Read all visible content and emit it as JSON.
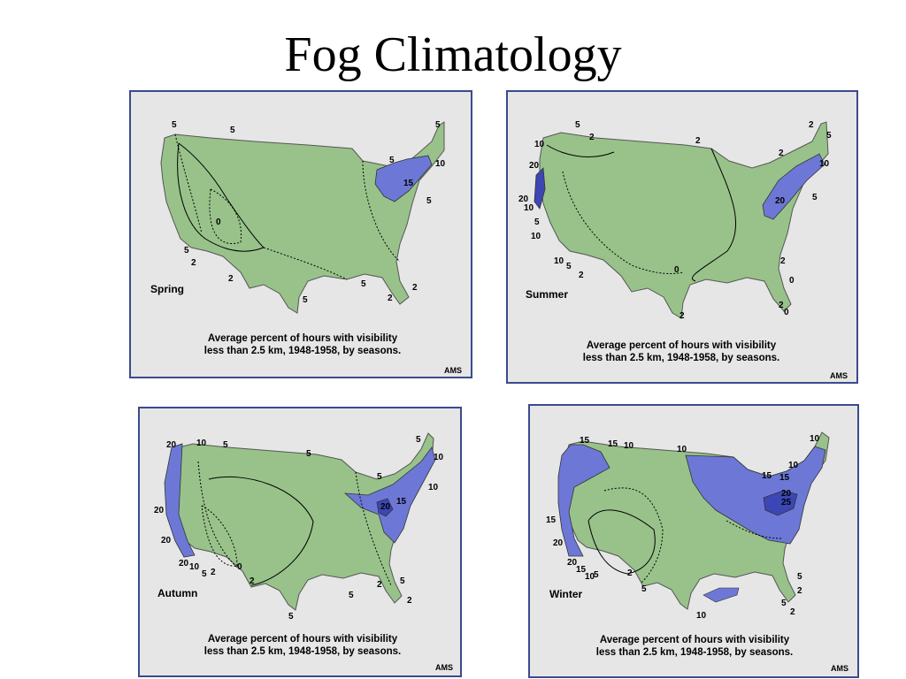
{
  "title": "Fog Climatology",
  "caption": {
    "line1": "Average percent of hours with visibility",
    "line2": "less than 2.5 km, 1948-1958, by seasons."
  },
  "credit": "AMS",
  "colors": {
    "land": "#98c28a",
    "fog_light": "#6d78d6",
    "fog_dark": "#3c46b4",
    "panel_bg": "#e6e6e6",
    "border": "#3b4a8e"
  },
  "panels": [
    {
      "season": "Spring",
      "contour_labels": [
        "5",
        "5",
        "5",
        "5",
        "10",
        "15",
        "5",
        "0",
        "5",
        "2",
        "2",
        "5",
        "5",
        "2",
        "2"
      ]
    },
    {
      "season": "Summer",
      "contour_labels": [
        "5",
        "2",
        "2",
        "2",
        "5",
        "10",
        "20",
        "20",
        "10",
        "5",
        "10",
        "10",
        "5",
        "2",
        "0",
        "2",
        "0",
        "2",
        "0",
        "2",
        "2",
        "20",
        "5",
        "10",
        "5"
      ]
    },
    {
      "season": "Autumn",
      "contour_labels": [
        "20",
        "10",
        "5",
        "5",
        "5",
        "10",
        "10",
        "5",
        "20",
        "15",
        "20",
        "20",
        "10",
        "5",
        "2",
        "0",
        "2",
        "5",
        "2",
        "5",
        "5",
        "2"
      ]
    },
    {
      "season": "Winter",
      "contour_labels": [
        "15",
        "15",
        "10",
        "10",
        "10",
        "10",
        "15",
        "15",
        "20",
        "25",
        "15",
        "20",
        "15",
        "10",
        "5",
        "2",
        "5",
        "10",
        "5",
        "2",
        "5",
        "2"
      ]
    }
  ]
}
